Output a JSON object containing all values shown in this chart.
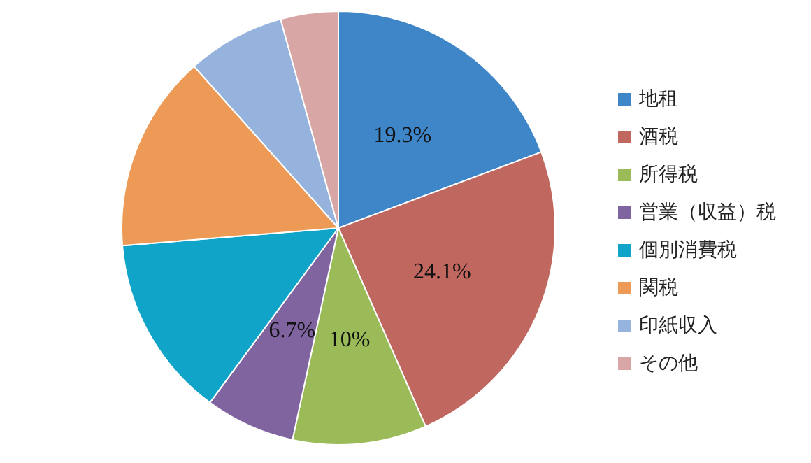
{
  "chart_data": {
    "type": "pie",
    "categories": [
      "地租",
      "酒税",
      "所得税",
      "営業（収益）税",
      "個別消費税",
      "関税",
      "印紙収入",
      "その他"
    ],
    "values": [
      19.3,
      24.1,
      10,
      6.7,
      13.6,
      14.7,
      7.3,
      4.3
    ],
    "value_labels": [
      "19.3%",
      "24.1%",
      "10%",
      "6.7%",
      null,
      null,
      null,
      null
    ],
    "colors": [
      "#3f86c8",
      "#c0675f",
      "#9bbb59",
      "#7f64a0",
      "#10a4c8",
      "#ec9a55",
      "#95b3dc",
      "#d9a6a6"
    ],
    "legend": "right"
  }
}
